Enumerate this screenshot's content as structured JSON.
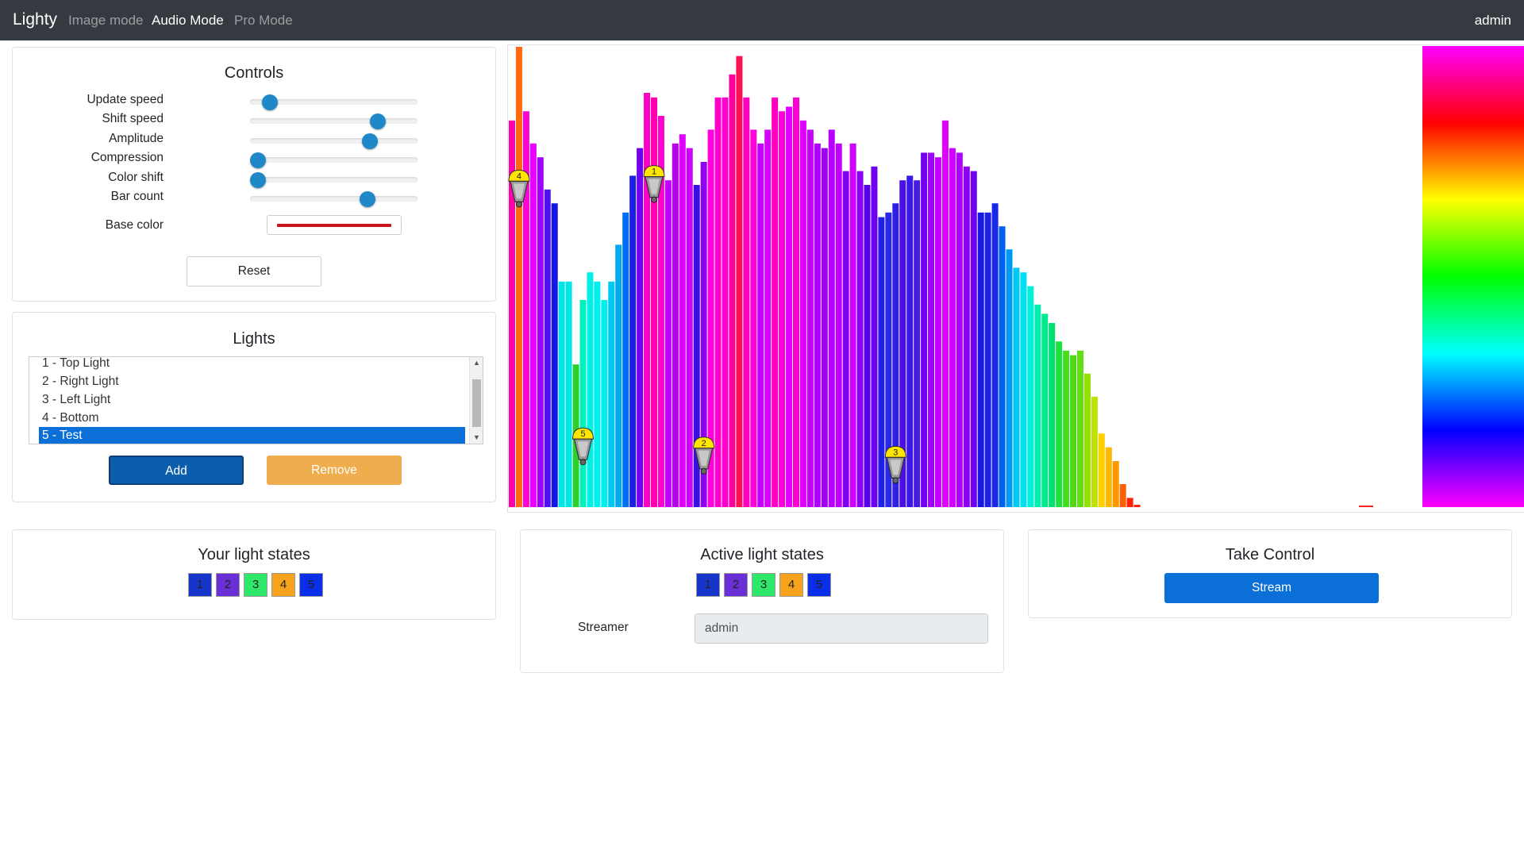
{
  "navbar": {
    "brand": "Lighty",
    "links": [
      "Image mode",
      "Audio Mode",
      "Pro Mode"
    ],
    "active_link": "Audio Mode",
    "user": "admin"
  },
  "controls": {
    "title": "Controls",
    "sliders": [
      {
        "label": "Update speed",
        "value": 0.08
      },
      {
        "label": "Shift speed",
        "value": 0.79
      },
      {
        "label": "Amplitude",
        "value": 0.74
      },
      {
        "label": "Compression",
        "value": 0.0
      },
      {
        "label": "Color shift",
        "value": 0.0
      },
      {
        "label": "Bar count",
        "value": 0.72
      }
    ],
    "base_color_label": "Base color",
    "base_color": "#c8141c",
    "reset_label": "Reset"
  },
  "lights": {
    "title": "Lights",
    "items": [
      "1 - Top Light",
      "2 - Right Light",
      "3 - Left Light",
      "4 - Bottom",
      "5 - Test"
    ],
    "selected_index": 4,
    "add_label": "Add",
    "remove_label": "Remove"
  },
  "your_states": {
    "title": "Your light states",
    "boxes": [
      {
        "label": "1",
        "color": "#1736c9"
      },
      {
        "label": "2",
        "color": "#6a2fd6"
      },
      {
        "label": "3",
        "color": "#2ee86a"
      },
      {
        "label": "4",
        "color": "#f7a21b"
      },
      {
        "label": "5",
        "color": "#0a2ee8"
      }
    ]
  },
  "active_states": {
    "title": "Active light states",
    "boxes": [
      {
        "label": "1",
        "color": "#1736c9"
      },
      {
        "label": "2",
        "color": "#6a2fd6"
      },
      {
        "label": "3",
        "color": "#2ee86a"
      },
      {
        "label": "4",
        "color": "#f7a21b"
      },
      {
        "label": "5",
        "color": "#0a2ee8"
      }
    ],
    "streamer_label": "Streamer",
    "streamer_value": "admin"
  },
  "take_control": {
    "title": "Take Control",
    "stream_label": "Stream"
  },
  "spectrum": {
    "bars": [
      {
        "v": 0.84,
        "c": "#ff00aa"
      },
      {
        "v": 1.0,
        "c": "#ff6a10"
      },
      {
        "v": 0.86,
        "c": "#ff00d5"
      },
      {
        "v": 0.79,
        "c": "#e600ff"
      },
      {
        "v": 0.76,
        "c": "#a000ff"
      },
      {
        "v": 0.69,
        "c": "#4d10ee"
      },
      {
        "v": 0.66,
        "c": "#1515e6"
      },
      {
        "v": 0.49,
        "c": "#00e6e6"
      },
      {
        "v": 0.49,
        "c": "#00e6e6"
      },
      {
        "v": 0.31,
        "c": "#2ccf2c"
      },
      {
        "v": 0.45,
        "c": "#00f0c0"
      },
      {
        "v": 0.51,
        "c": "#00f0e6"
      },
      {
        "v": 0.49,
        "c": "#00f0f0"
      },
      {
        "v": 0.45,
        "c": "#00f0f0"
      },
      {
        "v": 0.49,
        "c": "#00c8f0"
      },
      {
        "v": 0.57,
        "c": "#00a8f0"
      },
      {
        "v": 0.64,
        "c": "#0070f0"
      },
      {
        "v": 0.72,
        "c": "#1a20e6"
      },
      {
        "v": 0.78,
        "c": "#7000f0"
      },
      {
        "v": 0.9,
        "c": "#ff00c8"
      },
      {
        "v": 0.89,
        "c": "#ff00b0"
      },
      {
        "v": 0.85,
        "c": "#ff00d0"
      },
      {
        "v": 0.71,
        "c": "#c000ff"
      },
      {
        "v": 0.79,
        "c": "#b800f0"
      },
      {
        "v": 0.81,
        "c": "#e000ff"
      },
      {
        "v": 0.78,
        "c": "#d000ff"
      },
      {
        "v": 0.7,
        "c": "#3a10e0"
      },
      {
        "v": 0.75,
        "c": "#9000f0"
      },
      {
        "v": 0.82,
        "c": "#ff00dd"
      },
      {
        "v": 0.89,
        "c": "#ff00c8"
      },
      {
        "v": 0.89,
        "c": "#ff00d0"
      },
      {
        "v": 0.94,
        "c": "#ff00a0"
      },
      {
        "v": 0.98,
        "c": "#ff1050"
      },
      {
        "v": 0.89,
        "c": "#ff00c0"
      },
      {
        "v": 0.82,
        "c": "#ff00d8"
      },
      {
        "v": 0.79,
        "c": "#c000ff"
      },
      {
        "v": 0.82,
        "c": "#d800ff"
      },
      {
        "v": 0.89,
        "c": "#ff00c0"
      },
      {
        "v": 0.86,
        "c": "#ff00d8"
      },
      {
        "v": 0.87,
        "c": "#e000ff"
      },
      {
        "v": 0.89,
        "c": "#ff00d0"
      },
      {
        "v": 0.84,
        "c": "#e000ff"
      },
      {
        "v": 0.82,
        "c": "#c800ff"
      },
      {
        "v": 0.79,
        "c": "#b000ff"
      },
      {
        "v": 0.78,
        "c": "#a000f0"
      },
      {
        "v": 0.82,
        "c": "#b800ff"
      },
      {
        "v": 0.79,
        "c": "#c000ff"
      },
      {
        "v": 0.73,
        "c": "#8000f0"
      },
      {
        "v": 0.79,
        "c": "#d000ff"
      },
      {
        "v": 0.73,
        "c": "#8800f0"
      },
      {
        "v": 0.7,
        "c": "#5a00e8"
      },
      {
        "v": 0.74,
        "c": "#7000f0"
      },
      {
        "v": 0.63,
        "c": "#2020e6"
      },
      {
        "v": 0.64,
        "c": "#2828e6"
      },
      {
        "v": 0.66,
        "c": "#3020e0"
      },
      {
        "v": 0.71,
        "c": "#4a10e6"
      },
      {
        "v": 0.72,
        "c": "#3a18e6"
      },
      {
        "v": 0.71,
        "c": "#4818e6"
      },
      {
        "v": 0.77,
        "c": "#7000f0"
      },
      {
        "v": 0.77,
        "c": "#a000ff"
      },
      {
        "v": 0.76,
        "c": "#c000ff"
      },
      {
        "v": 0.84,
        "c": "#e000ff"
      },
      {
        "v": 0.78,
        "c": "#d000ff"
      },
      {
        "v": 0.77,
        "c": "#b000ff"
      },
      {
        "v": 0.74,
        "c": "#9000f0"
      },
      {
        "v": 0.73,
        "c": "#7000f0"
      },
      {
        "v": 0.64,
        "c": "#1818e6"
      },
      {
        "v": 0.64,
        "c": "#2020e6"
      },
      {
        "v": 0.66,
        "c": "#1828e6"
      },
      {
        "v": 0.61,
        "c": "#0060f0"
      },
      {
        "v": 0.56,
        "c": "#0098f0"
      },
      {
        "v": 0.52,
        "c": "#00c8f0"
      },
      {
        "v": 0.51,
        "c": "#00e0f0"
      },
      {
        "v": 0.48,
        "c": "#00f0d8"
      },
      {
        "v": 0.44,
        "c": "#00f0b0"
      },
      {
        "v": 0.42,
        "c": "#00e890"
      },
      {
        "v": 0.4,
        "c": "#00e070"
      },
      {
        "v": 0.36,
        "c": "#20e040"
      },
      {
        "v": 0.34,
        "c": "#40e020"
      },
      {
        "v": 0.33,
        "c": "#50d818"
      },
      {
        "v": 0.34,
        "c": "#60e010"
      },
      {
        "v": 0.29,
        "c": "#90e000"
      },
      {
        "v": 0.24,
        "c": "#c0e000"
      },
      {
        "v": 0.16,
        "c": "#ffd000"
      },
      {
        "v": 0.13,
        "c": "#ffb800"
      },
      {
        "v": 0.1,
        "c": "#ff9800"
      },
      {
        "v": 0.05,
        "c": "#ff6000"
      },
      {
        "v": 0.02,
        "c": "#ff2000"
      },
      {
        "v": 0.005,
        "c": "#ff2000"
      }
    ],
    "markers": [
      {
        "label": "4",
        "bar": 1,
        "level": 0.72
      },
      {
        "label": "1",
        "bar": 20,
        "level": 0.73
      },
      {
        "label": "5",
        "bar": 10,
        "level": 0.16
      },
      {
        "label": "2",
        "bar": 27,
        "level": 0.14
      },
      {
        "label": "3",
        "bar": 54,
        "level": 0.12
      }
    ],
    "hue_strip": [
      "#ff00ff",
      "#ff0080",
      "#ff0000",
      "#ff8000",
      "#ffff00",
      "#80ff00",
      "#00ff00",
      "#00ff80",
      "#00ffff",
      "#0080ff",
      "#0000ff",
      "#8000ff",
      "#ff00ff"
    ]
  }
}
